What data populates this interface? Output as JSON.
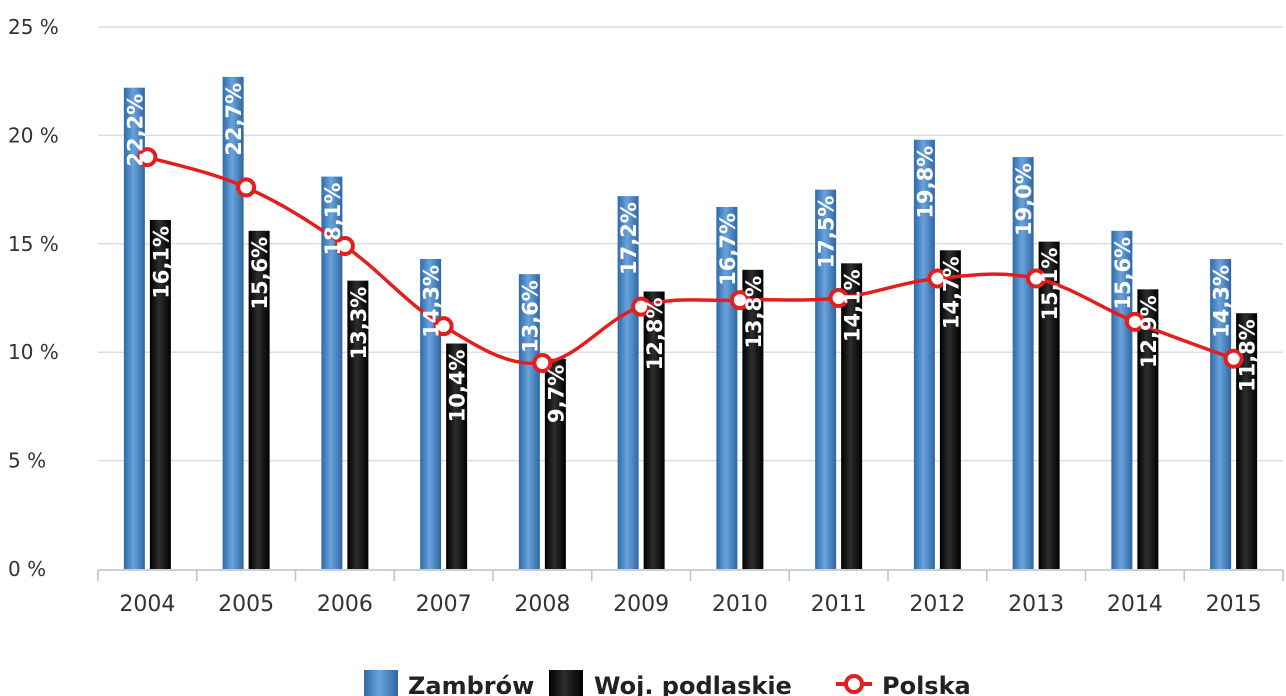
{
  "chart_data": {
    "type": "bar",
    "categories": [
      "2004",
      "2005",
      "2006",
      "2007",
      "2008",
      "2009",
      "2010",
      "2011",
      "2012",
      "2013",
      "2014",
      "2015"
    ],
    "ylim": [
      0,
      25
    ],
    "y_ticks": [
      0,
      5,
      10,
      15,
      20,
      25
    ],
    "y_tick_labels": [
      "0 %",
      "5 %",
      "10 %",
      "15 %",
      "20 %",
      "25 %"
    ],
    "grid": true,
    "legend_position": "bottom",
    "series": [
      {
        "name": "Zambrów",
        "kind": "bar",
        "color": "#4a86c5",
        "values": [
          22.2,
          22.7,
          18.1,
          14.3,
          13.6,
          17.2,
          16.7,
          17.5,
          19.8,
          19.0,
          15.6,
          14.3
        ],
        "labels": [
          "22,2%",
          "22,7%",
          "18,1%",
          "14,3%",
          "13,6%",
          "17,2%",
          "16,7%",
          "17,5%",
          "19,8%",
          "19,0%",
          "15,6%",
          "14,3%"
        ]
      },
      {
        "name": "Woj. podlaskie",
        "kind": "bar",
        "color": "#111111",
        "values": [
          16.1,
          15.6,
          13.3,
          10.4,
          9.7,
          12.8,
          13.8,
          14.1,
          14.7,
          15.1,
          12.9,
          11.8
        ],
        "labels": [
          "16,1%",
          "15,6%",
          "13,3%",
          "10,4%",
          "9,7%",
          "12,8%",
          "13,8%",
          "14,1%",
          "14,7%",
          "15,1%",
          "12,9%",
          "11,8%"
        ]
      },
      {
        "name": "Polska",
        "kind": "line",
        "color": "#e31e1e",
        "values": [
          19.0,
          17.6,
          14.9,
          11.2,
          9.5,
          12.1,
          12.4,
          12.5,
          13.4,
          13.4,
          11.4,
          9.7
        ]
      }
    ]
  }
}
